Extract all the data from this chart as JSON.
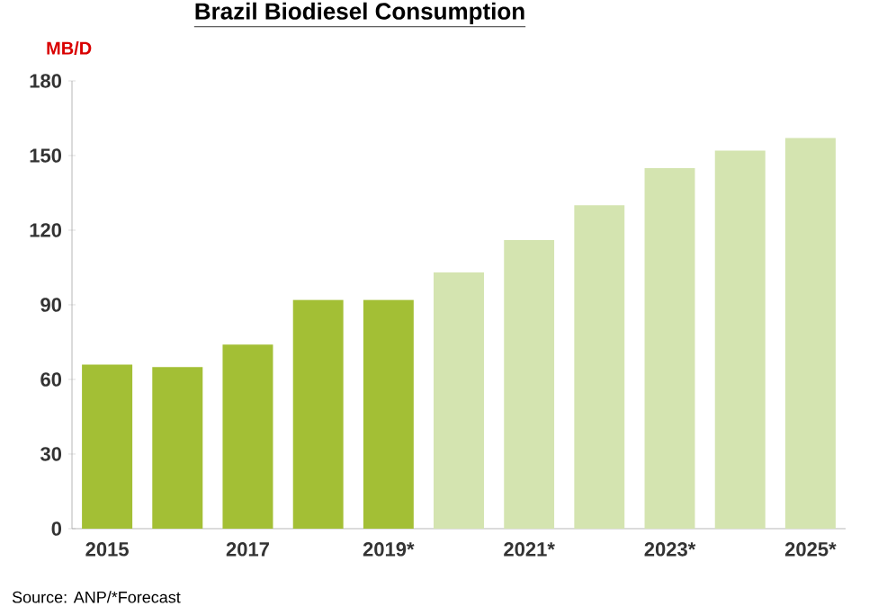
{
  "chart_data": {
    "type": "bar",
    "title": "Brazil Biodiesel Consumption",
    "ylabel": "MB/D",
    "categories": [
      "2015",
      null,
      "2017",
      null,
      "2019*",
      null,
      "2021*",
      null,
      "2023*",
      null,
      "2025*"
    ],
    "values": [
      66,
      65,
      74,
      92,
      92,
      103,
      116,
      130,
      145,
      152,
      157
    ],
    "colors": [
      "#a3bf35",
      "#a3bf35",
      "#a3bf35",
      "#a3bf35",
      "#a3bf35",
      "#d4e4b0",
      "#d4e4b0",
      "#d4e4b0",
      "#d4e4b0",
      "#d4e4b0",
      "#d4e4b0"
    ],
    "ylim": [
      0,
      180
    ],
    "yticks": [
      0,
      30,
      60,
      90,
      120,
      150,
      180
    ],
    "annotations": [
      "Source: ANP/*Forecast"
    ]
  }
}
